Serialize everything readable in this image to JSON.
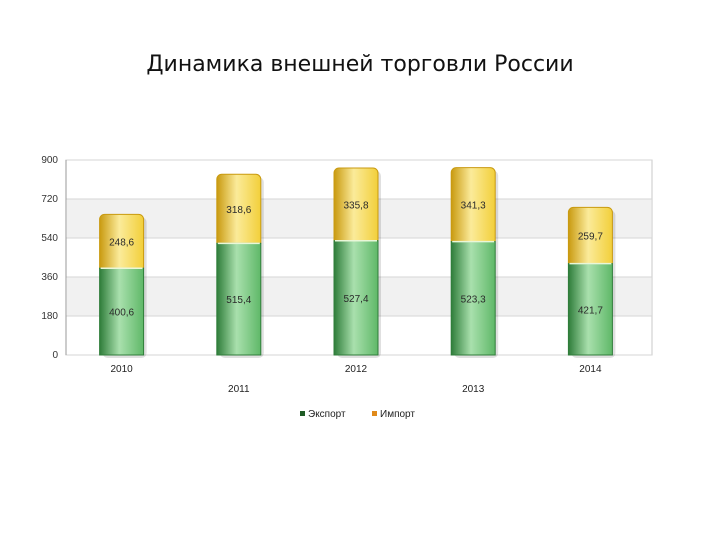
{
  "title": "Динамика внешней торговли России",
  "colors": {
    "export_fill": "#5fb868",
    "export_light": "#a9e0ad",
    "export_dark": "#2f7d3a",
    "import_fill": "#f2cf3a",
    "import_light": "#fbeb9a",
    "import_dark": "#c99a10",
    "legend_export": "#1f5c25",
    "legend_import": "#e08a1a",
    "grid_band": "#f1f1f1",
    "plot_border": "#c9c9c9"
  },
  "chart_data": {
    "type": "bar",
    "stacked": true,
    "categories": [
      "2010",
      "2011",
      "2012",
      "2013",
      "2014"
    ],
    "series": [
      {
        "name": "Экспорт",
        "values": [
          400.6,
          515.4,
          527.4,
          523.3,
          421.7
        ],
        "labels": [
          "400,6",
          "515,4",
          "527,4",
          "523,3",
          "421,7"
        ]
      },
      {
        "name": "Импорт",
        "values": [
          248.6,
          318.6,
          335.8,
          341.3,
          259.7
        ],
        "labels": [
          "248,6",
          "318,6",
          "335,8",
          "341,3",
          "259,7"
        ]
      }
    ],
    "y_ticks": [
      0,
      180,
      360,
      540,
      720,
      900
    ],
    "ylim": [
      0,
      900
    ],
    "xlabel": "",
    "ylabel": "",
    "grid": true,
    "legend_position": "bottom"
  }
}
